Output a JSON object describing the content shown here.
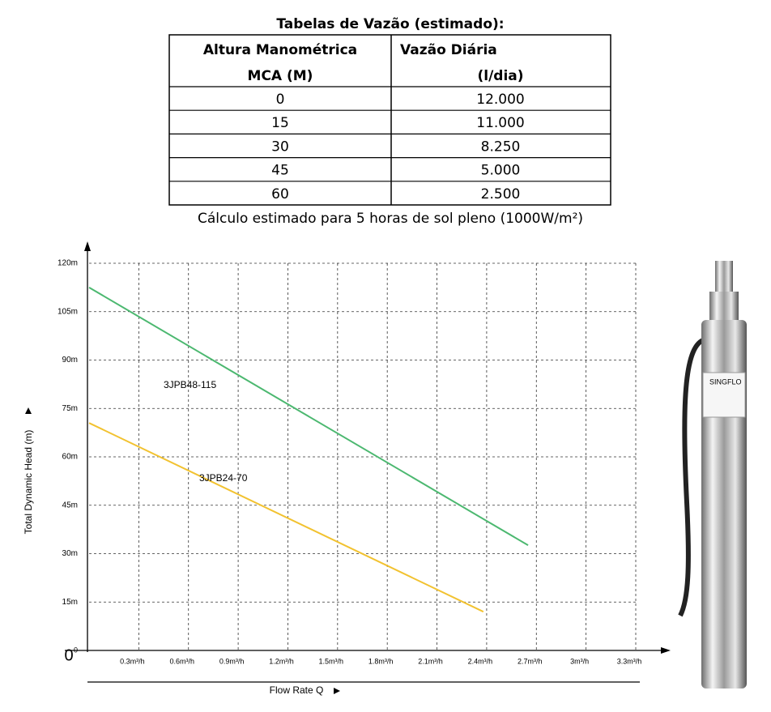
{
  "table": {
    "title": "Tabelas de Vazão (estimado):",
    "header": [
      [
        "Altura Manométrica",
        "MCA (M)"
      ],
      [
        "Vazão Diária",
        "(l/dia)"
      ]
    ],
    "rows": [
      [
        "0",
        "12.000"
      ],
      [
        "15",
        "11.000"
      ],
      [
        "30",
        "8.250"
      ],
      [
        "45",
        "5.000"
      ],
      [
        "60",
        "2.500"
      ]
    ],
    "footnote": "Cálculo estimado para 5 horas de sol pleno (1000W/m²)"
  },
  "chart_data": {
    "type": "line",
    "xlabel": "Flow Rate Q",
    "ylabel": "Total Dynamic Head (m)",
    "origin_label": "0",
    "xlim": [
      0,
      3.3
    ],
    "ylim": [
      0,
      120
    ],
    "xticks": [
      {
        "value": 0.3,
        "label": "0.3m³/h"
      },
      {
        "value": 0.6,
        "label": "0.6m³/h"
      },
      {
        "value": 0.9,
        "label": "0.9m³/h"
      },
      {
        "value": 1.2,
        "label": "1.2m³/h"
      },
      {
        "value": 1.5,
        "label": "1.5m³/h"
      },
      {
        "value": 1.8,
        "label": "1.8m³/h"
      },
      {
        "value": 2.1,
        "label": "2.1m³/h"
      },
      {
        "value": 2.4,
        "label": "2.4m³/h"
      },
      {
        "value": 2.7,
        "label": "2.7m³/h"
      },
      {
        "value": 3.0,
        "label": "3m³/h"
      },
      {
        "value": 3.3,
        "label": "3.3m³/h"
      }
    ],
    "yticks": [
      0,
      {
        "value": 15,
        "label": "15m"
      },
      {
        "value": 30,
        "label": "30m"
      },
      {
        "value": 45,
        "label": "45m"
      },
      {
        "value": 60,
        "label": "60m"
      },
      {
        "value": 75,
        "label": "75m"
      },
      {
        "value": 90,
        "label": "90m"
      },
      {
        "value": 105,
        "label": "105m"
      },
      {
        "value": 120,
        "label": "120m"
      }
    ],
    "grid": true,
    "series": [
      {
        "name": "3JPB48-115",
        "color": "#4cb870",
        "x": [
          0,
          2.65
        ],
        "y": [
          112.5,
          32.6
        ]
      },
      {
        "name": "3JPB24-70",
        "color": "#f2c230",
        "x": [
          0,
          2.38
        ],
        "y": [
          70.5,
          12
        ]
      }
    ]
  },
  "product": {
    "brand": "SINGFLO"
  }
}
